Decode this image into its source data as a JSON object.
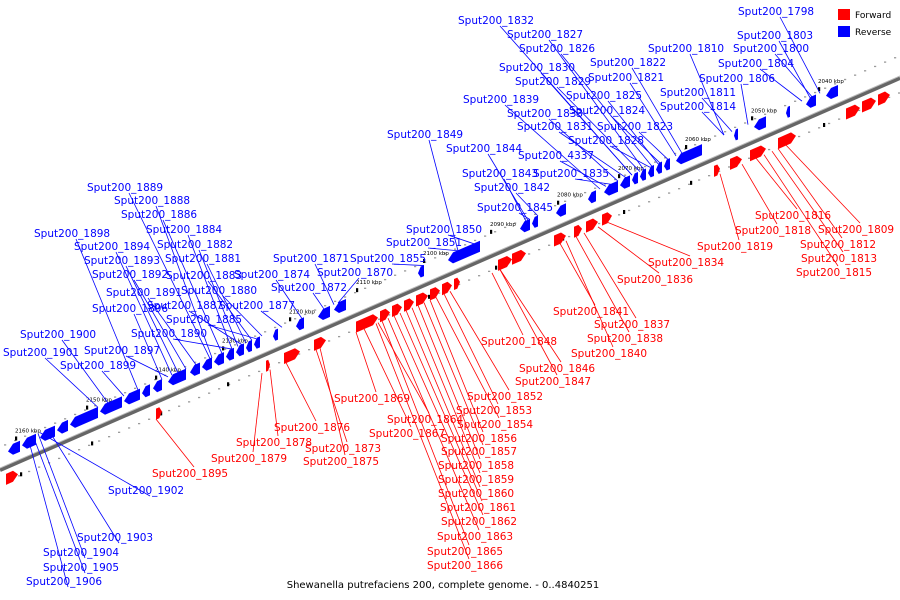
{
  "caption": "Shewanella putrefaciens 200, complete genome. - 0..4840251",
  "legend": [
    {
      "label": "Forward",
      "color": "#ff0000"
    },
    {
      "label": "Reverse",
      "color": "#0000ff"
    }
  ],
  "colors": {
    "forward": "#ff0000",
    "reverse": "#0000ff"
  },
  "ticks": [
    "2040 kbp",
    "2050 kbp",
    "2060 kbp",
    "2070 kbp",
    "2080 kbp",
    "2090 kbp",
    "2100 kbp",
    "2110 kbp",
    "2120 kbp",
    "2130 kbp",
    "2140 kbp",
    "2150 kbp",
    "2160 kbp"
  ],
  "reverse_labels": [
    "Sput200_1798",
    "Sput200_1800",
    "Sput200_1803",
    "Sput200_1804",
    "Sput200_1806",
    "Sput200_1810",
    "Sput200_1811",
    "Sput200_1814",
    "Sput200_1821",
    "Sput200_1822",
    "Sput200_1823",
    "Sput200_1824",
    "Sput200_1825",
    "Sput200_1826",
    "Sput200_1827",
    "Sput200_1828",
    "Sput200_1829",
    "Sput200_1830",
    "Sput200_1831",
    "Sput200_1832",
    "Sput200_1833",
    "Sput200_1835",
    "Sput200_1839",
    "Sput200_4337",
    "Sput200_1842",
    "Sput200_1843",
    "Sput200_1844",
    "Sput200_1845",
    "Sput200_1849",
    "Sput200_1850",
    "Sput200_1851",
    "Sput200_1855",
    "Sput200_1870",
    "Sput200_1871",
    "Sput200_1872",
    "Sput200_1874",
    "Sput200_1877",
    "Sput200_1880",
    "Sput200_1881",
    "Sput200_1882",
    "Sput200_1883",
    "Sput200_1884",
    "Sput200_1885",
    "Sput200_1886",
    "Sput200_1887",
    "Sput200_1888",
    "Sput200_1889",
    "Sput200_1890",
    "Sput200_1891",
    "Sput200_1892",
    "Sput200_1893",
    "Sput200_1894",
    "Sput200_1896",
    "Sput200_1897",
    "Sput200_1898",
    "Sput200_1899",
    "Sput200_1900",
    "Sput200_1901",
    "Sput200_1902",
    "Sput200_1903",
    "Sput200_1904",
    "Sput200_1905",
    "Sput200_1906"
  ],
  "forward_labels": [
    "Sput200_1809",
    "Sput200_1812",
    "Sput200_1813",
    "Sput200_1815",
    "Sput200_1816",
    "Sput200_1818",
    "Sput200_1819",
    "Sput200_1834",
    "Sput200_1836",
    "Sput200_1837",
    "Sput200_1838",
    "Sput200_1840",
    "Sput200_1841",
    "Sput200_1846",
    "Sput200_1847",
    "Sput200_1848",
    "Sput200_1852",
    "Sput200_1853",
    "Sput200_1854",
    "Sput200_1856",
    "Sput200_1857",
    "Sput200_1858",
    "Sput200_1859",
    "Sput200_1860",
    "Sput200_1861",
    "Sput200_1862",
    "Sput200_1863",
    "Sput200_1864",
    "Sput200_1865",
    "Sput200_1866",
    "Sput200_1867",
    "Sput200_1869",
    "Sput200_1873",
    "Sput200_1875",
    "Sput200_1876",
    "Sput200_1878",
    "Sput200_1879",
    "Sput200_1895"
  ]
}
